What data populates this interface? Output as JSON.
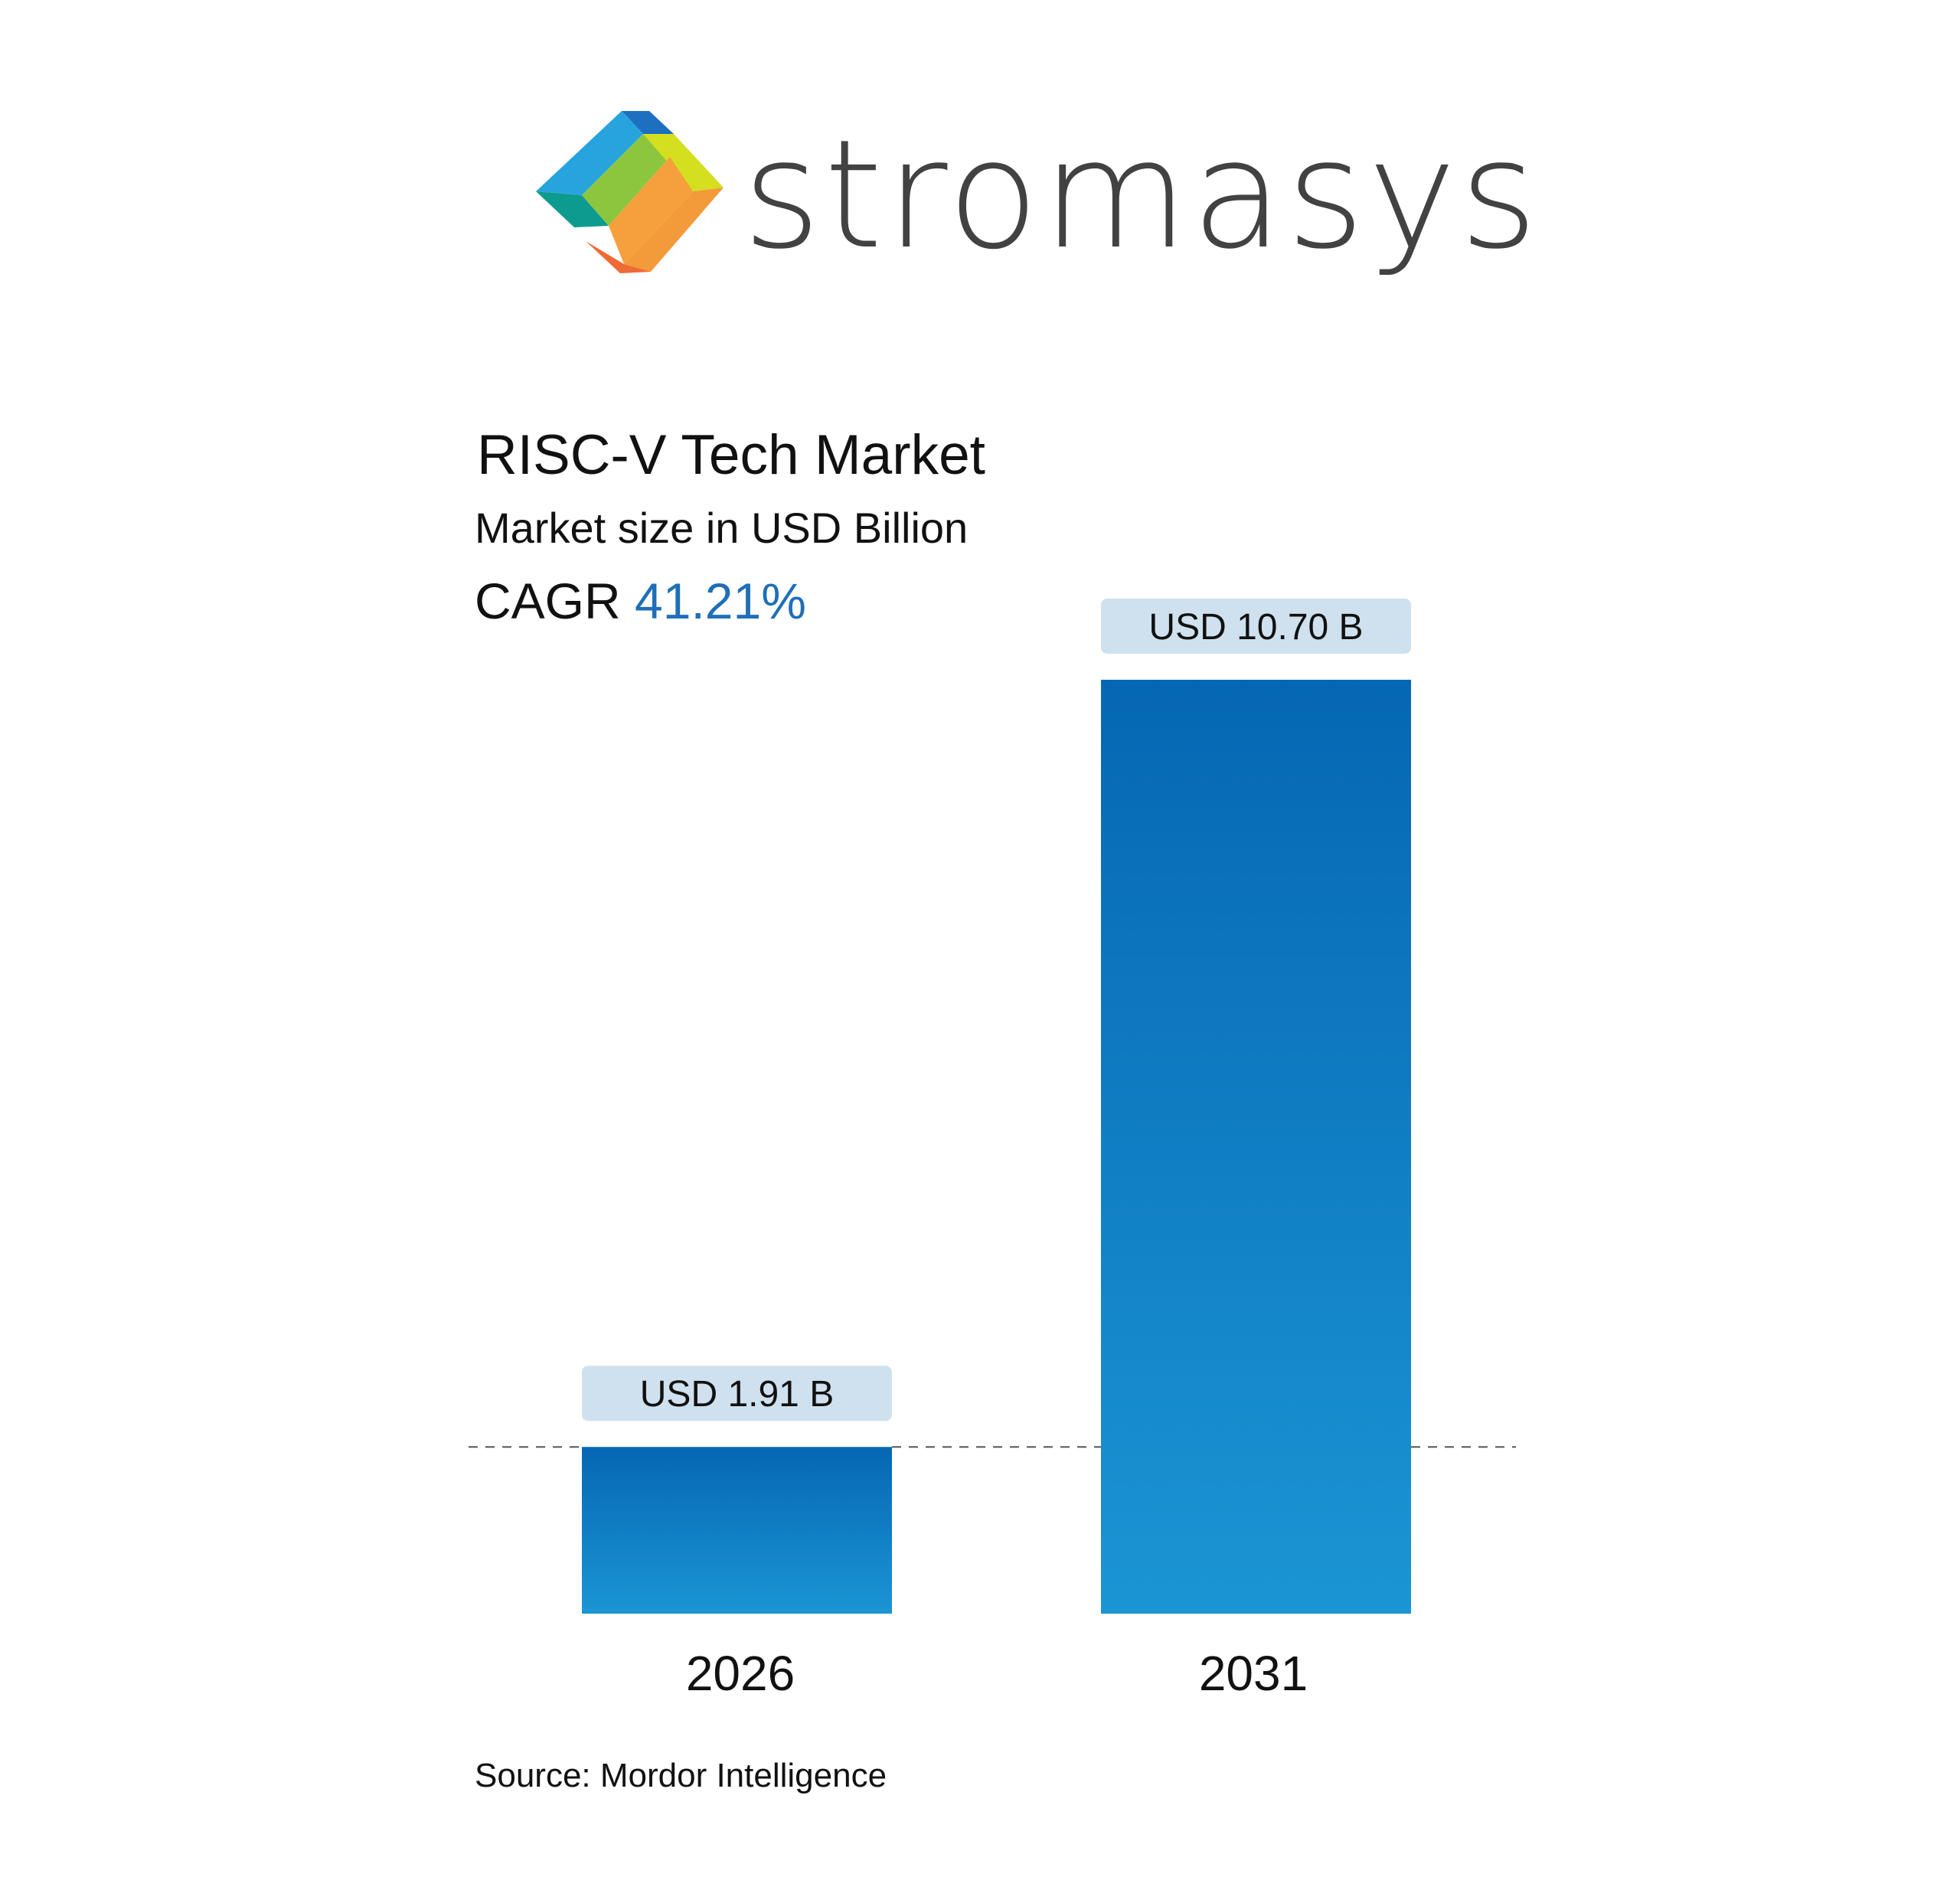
{
  "brand": {
    "name": "stromasys",
    "logo_icon": "stromasys-logo-mark"
  },
  "header": {
    "title": "RISC-V Tech Market",
    "subtitle": "Market size in USD Billion",
    "cagr_label": "CAGR",
    "cagr_value": "41.21%"
  },
  "footer": {
    "source": "Source: Mordor Intelligence"
  },
  "colors": {
    "bar_top": "#0567b3",
    "bar_bottom": "#1b95d4",
    "label_bg": "#cfe1ee",
    "accent": "#1f6fb8"
  },
  "chart_data": {
    "type": "bar",
    "title": "RISC-V Tech Market",
    "subtitle": "Market size in USD Billion",
    "categories": [
      "2026",
      "2031"
    ],
    "values": [
      1.91,
      10.7
    ],
    "data_labels": [
      "USD 1.91 B",
      "USD 10.70 B"
    ],
    "reference_line": 1.91,
    "grid": false
  }
}
